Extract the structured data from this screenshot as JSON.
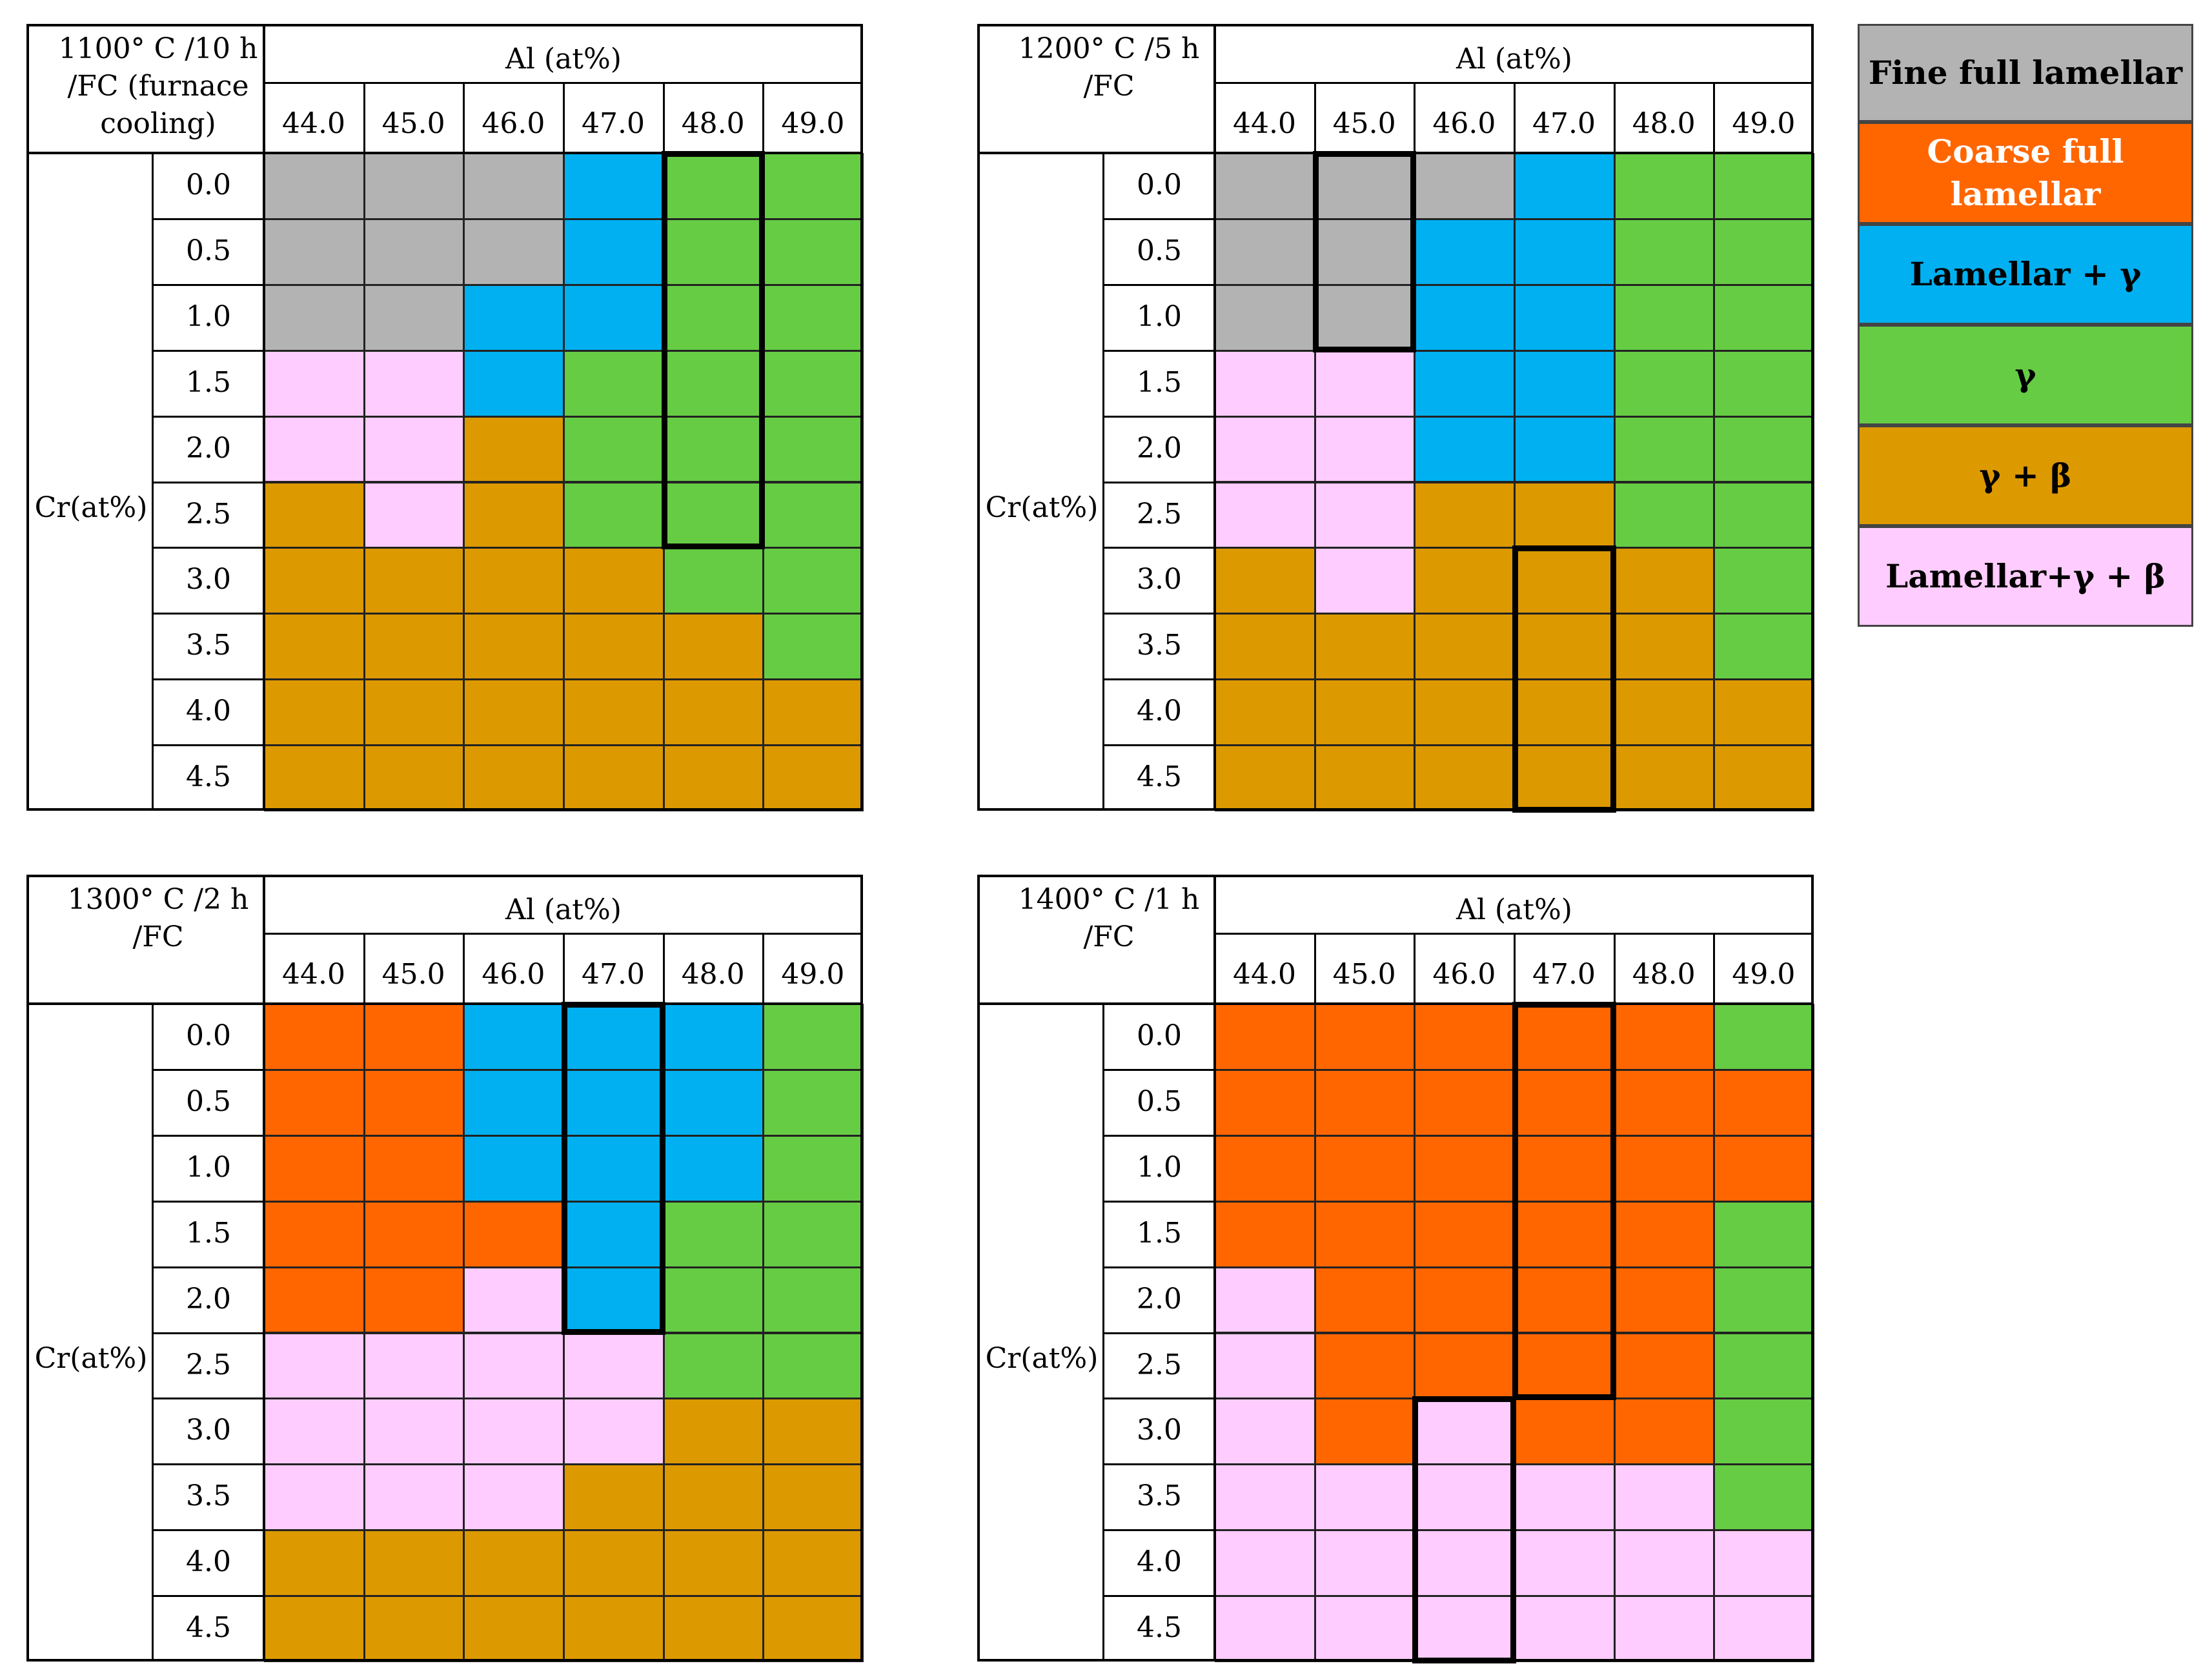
{
  "colors": {
    "fine_full_lamellar": "#b3b3b3",
    "coarse_full_lamellar": "#ff6600",
    "lamellar_gamma": "#00b0f0",
    "gamma": "#66cc44",
    "gamma_beta": "#dd9900",
    "lamellar_gamma_beta": "#ffccff"
  },
  "legend": [
    {
      "key": "fine_full_lamellar",
      "label": "Fine full lamellar"
    },
    {
      "key": "coarse_full_lamellar",
      "label": "Coarse full lamellar"
    },
    {
      "key": "lamellar_gamma",
      "label": "Lamellar + γ"
    },
    {
      "key": "gamma",
      "label": "γ"
    },
    {
      "key": "gamma_beta",
      "label": "γ + β"
    },
    {
      "key": "lamellar_gamma_beta",
      "label": "Lamellar+γ + β"
    }
  ],
  "chart_data": [
    {
      "type": "heatmap",
      "title": "1100° C /10 h\n/FC (furnace\ncooling)",
      "xlabel": "Al (at%)",
      "ylabel": "Cr(at%)",
      "x": [
        "44.0",
        "45.0",
        "46.0",
        "47.0",
        "48.0",
        "49.0"
      ],
      "y": [
        "0.0",
        "0.5",
        "1.0",
        "1.5",
        "2.0",
        "2.5",
        "3.0",
        "3.5",
        "4.0",
        "4.5"
      ],
      "legend_codes": {
        "F": "fine_full_lamellar",
        "C": "coarse_full_lamellar",
        "L": "lamellar_gamma",
        "G": "gamma",
        "B": "gamma_beta",
        "P": "lamellar_gamma_beta"
      },
      "grid": [
        "FFFLGG",
        "FFFLGG",
        "FFLLGG",
        "PPLGGG",
        "PPBGGG",
        "BPBGGG",
        "BBBBGG",
        "BBBBBG",
        "BBBBBB",
        "BBBBBB"
      ],
      "highlight": {
        "x": "48.0",
        "y_from": "0.0",
        "y_to": "2.5"
      }
    },
    {
      "type": "heatmap",
      "title": "1200° C /5 h\n/FC",
      "xlabel": "Al (at%)",
      "ylabel": "Cr(at%)",
      "x": [
        "44.0",
        "45.0",
        "46.0",
        "47.0",
        "48.0",
        "49.0"
      ],
      "y": [
        "0.0",
        "0.5",
        "1.0",
        "1.5",
        "2.0",
        "2.5",
        "3.0",
        "3.5",
        "4.0",
        "4.5"
      ],
      "legend_codes": {
        "F": "fine_full_lamellar",
        "C": "coarse_full_lamellar",
        "L": "lamellar_gamma",
        "G": "gamma",
        "B": "gamma_beta",
        "P": "lamellar_gamma_beta"
      },
      "grid": [
        "FFFLGG",
        "FFLLGG",
        "FFLLGG",
        "PPLLGG",
        "PPLLGG",
        "PPBBGG",
        "BPBBBG",
        "BBBBBG",
        "BBBBBB",
        "BBBBBB"
      ],
      "highlight": [
        {
          "x": "45.0",
          "y_from": "0.0",
          "y_to": "1.0"
        },
        {
          "x": "47.0",
          "y_from": "3.0",
          "y_to": "4.5"
        }
      ]
    },
    {
      "type": "heatmap",
      "title": "1300° C /2 h\n/FC",
      "xlabel": "Al (at%)",
      "ylabel": "Cr(at%)",
      "x": [
        "44.0",
        "45.0",
        "46.0",
        "47.0",
        "48.0",
        "49.0"
      ],
      "y": [
        "0.0",
        "0.5",
        "1.0",
        "1.5",
        "2.0",
        "2.5",
        "3.0",
        "3.5",
        "4.0",
        "4.5"
      ],
      "legend_codes": {
        "F": "fine_full_lamellar",
        "C": "coarse_full_lamellar",
        "L": "lamellar_gamma",
        "G": "gamma",
        "B": "gamma_beta",
        "P": "lamellar_gamma_beta"
      },
      "grid": [
        "CCLLLG",
        "CCLLLG",
        "CCLLLG",
        "CCCLGG",
        "CCPLGG",
        "PPPPGG",
        "PPPPBB",
        "PPPBBB",
        "BBBBBB",
        "BBBBBB"
      ],
      "highlight": {
        "x": "47.0",
        "y_from": "0.0",
        "y_to": "2.0"
      }
    },
    {
      "type": "heatmap",
      "title": "1400° C /1 h\n/FC",
      "xlabel": "Al (at%)",
      "ylabel": "Cr(at%)",
      "x": [
        "44.0",
        "45.0",
        "46.0",
        "47.0",
        "48.0",
        "49.0"
      ],
      "y": [
        "0.0",
        "0.5",
        "1.0",
        "1.5",
        "2.0",
        "2.5",
        "3.0",
        "3.5",
        "4.0",
        "4.5"
      ],
      "legend_codes": {
        "F": "fine_full_lamellar",
        "C": "coarse_full_lamellar",
        "L": "lamellar_gamma",
        "G": "gamma",
        "B": "gamma_beta",
        "P": "lamellar_gamma_beta"
      },
      "grid": [
        "CCCCCG",
        "CCCCCC",
        "CCCCCC",
        "CCCCCG",
        "PCCCCG",
        "PCCCCG",
        "PCPCCG",
        "PPPPPG",
        "PPPPPP",
        "PPPPPP"
      ],
      "highlight": [
        {
          "x": "47.0",
          "y_from": "0.0",
          "y_to": "2.5"
        },
        {
          "x": "46.0",
          "y_from": "3.0",
          "y_to": "4.5"
        }
      ]
    }
  ]
}
